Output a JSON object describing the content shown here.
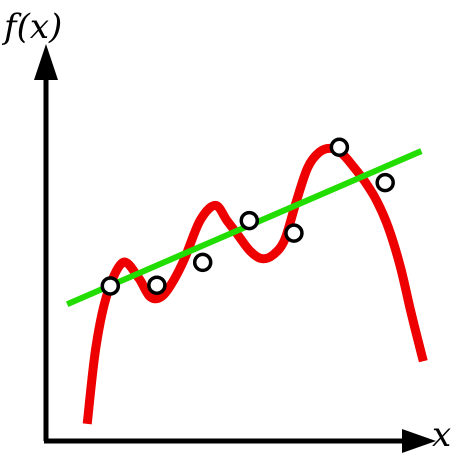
{
  "chart_data": {
    "type": "line",
    "title": "",
    "xlabel": "x",
    "ylabel": "f(x)",
    "xlim": [
      0,
      10
    ],
    "ylim": [
      0,
      10
    ],
    "grid": false,
    "legend": "none",
    "series": [
      {
        "kind": "scatter",
        "marker": "hollow-circle",
        "x": [
          1.67,
          2.88,
          4.07,
          5.28,
          6.44,
          7.62,
          8.81
        ],
        "y": [
          4.08,
          4.1,
          4.7,
          5.8,
          5.47,
          7.73,
          6.8
        ]
      },
      {
        "kind": "fit-curve",
        "x": [
          1.07,
          1.3,
          1.6,
          2.0,
          2.4,
          2.7,
          3.0,
          3.3,
          3.6,
          4.0,
          4.4,
          4.7,
          5.0,
          5.3,
          5.6,
          5.9,
          6.2,
          6.5,
          6.8,
          7.1,
          7.4,
          7.7,
          8.0,
          8.3,
          8.6,
          8.9,
          9.2,
          9.5,
          9.8
        ],
        "y": [
          0.45,
          2.5,
          3.9,
          4.7,
          4.3,
          3.8,
          3.8,
          4.2,
          4.8,
          5.8,
          6.2,
          5.8,
          5.4,
          5.0,
          4.8,
          4.9,
          5.3,
          6.3,
          7.2,
          7.6,
          7.7,
          7.55,
          7.2,
          6.8,
          6.3,
          5.6,
          4.6,
          3.3,
          2.1
        ]
      },
      {
        "kind": "linear-fit",
        "x": [
          0.55,
          9.75
        ],
        "y": [
          3.6,
          7.63
        ]
      }
    ],
    "colors": {
      "curve": "#ee0000",
      "line": "#22dd00",
      "points_fill": "#ffffff",
      "points_stroke": "#000000",
      "axes": "#000000"
    }
  }
}
